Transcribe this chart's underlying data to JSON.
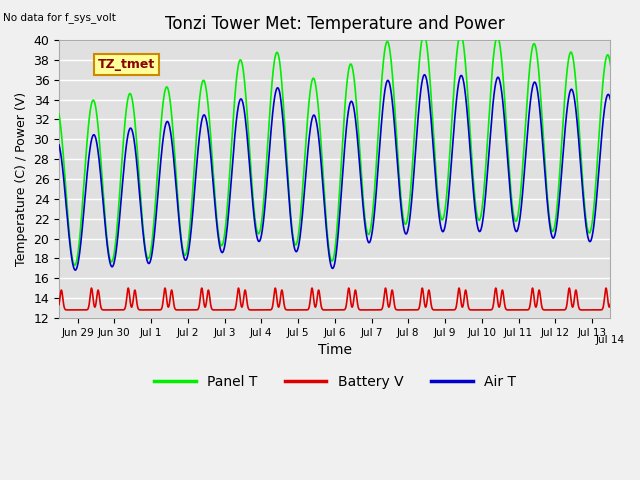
{
  "title": "Tonzi Tower Met: Temperature and Power",
  "xlabel": "Time",
  "ylabel": "Temperature (C) / Power (V)",
  "ylim": [
    12,
    40
  ],
  "no_data_text": "No data for f_sys_volt",
  "annotation_label": "TZ_tmet",
  "panel_t_color": "#00ee00",
  "battery_v_color": "#dd0000",
  "air_t_color": "#0000cc",
  "legend_labels": [
    "Panel T",
    "Battery V",
    "Air T"
  ],
  "tick_labels": [
    "Jun 29",
    "Jun 30",
    "Jul 1",
    "Jul 2",
    "Jul 3",
    "Jul 4",
    "Jul 5",
    "Jul 6",
    "Jul 7",
    "Jul 8",
    "Jul 9",
    "Jul 10",
    "Jul 11",
    "Jul 12",
    "Jul 13",
    "Jul 14"
  ]
}
